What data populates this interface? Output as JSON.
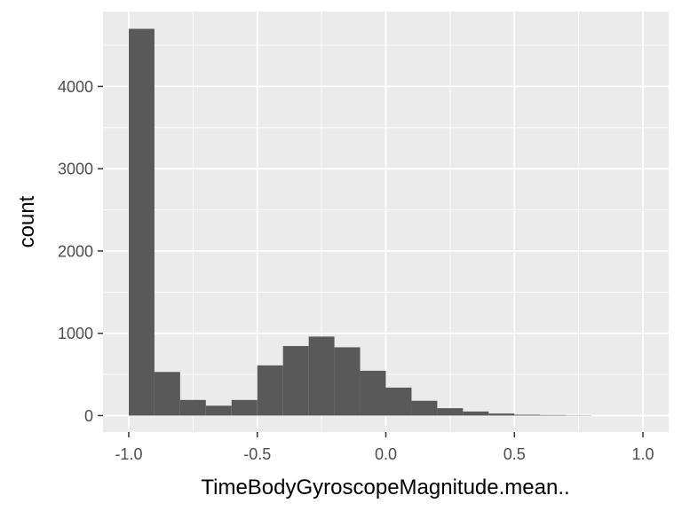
{
  "chart_data": {
    "type": "bar",
    "title": "",
    "xlabel": "TimeBodyGyroscopeMagnitude.mean..",
    "ylabel": "count",
    "xlim": [
      -1.1,
      1.1
    ],
    "ylim": [
      -200,
      4910
    ],
    "x_ticks": [
      -1.0,
      -0.5,
      0.0,
      0.5,
      1.0
    ],
    "x_tick_labels": [
      "-1.0",
      "-0.5",
      "0.0",
      "0.5",
      "1.0"
    ],
    "y_ticks": [
      0,
      1000,
      2000,
      3000,
      4000
    ],
    "y_tick_labels": [
      "0",
      "1000",
      "2000",
      "3000",
      "4000"
    ],
    "grid": true,
    "bin_width": 0.1,
    "bins": [
      {
        "x0": -1.0,
        "x1": -0.9,
        "count": 4700
      },
      {
        "x0": -0.9,
        "x1": -0.8,
        "count": 530
      },
      {
        "x0": -0.8,
        "x1": -0.7,
        "count": 190
      },
      {
        "x0": -0.7,
        "x1": -0.6,
        "count": 120
      },
      {
        "x0": -0.6,
        "x1": -0.5,
        "count": 190
      },
      {
        "x0": -0.5,
        "x1": -0.4,
        "count": 610
      },
      {
        "x0": -0.4,
        "x1": -0.3,
        "count": 845
      },
      {
        "x0": -0.3,
        "x1": -0.2,
        "count": 960
      },
      {
        "x0": -0.2,
        "x1": -0.1,
        "count": 830
      },
      {
        "x0": -0.1,
        "x1": 0.0,
        "count": 545
      },
      {
        "x0": 0.0,
        "x1": 0.1,
        "count": 340
      },
      {
        "x0": 0.1,
        "x1": 0.2,
        "count": 180
      },
      {
        "x0": 0.2,
        "x1": 0.3,
        "count": 90
      },
      {
        "x0": 0.3,
        "x1": 0.4,
        "count": 50
      },
      {
        "x0": 0.4,
        "x1": 0.5,
        "count": 25
      },
      {
        "x0": 0.5,
        "x1": 0.6,
        "count": 10
      },
      {
        "x0": 0.6,
        "x1": 0.7,
        "count": 6
      },
      {
        "x0": 0.7,
        "x1": 0.8,
        "count": 3
      }
    ],
    "colors": {
      "bar_fill": "#595959",
      "panel_background": "#ebebeb",
      "grid_line": "#ffffff",
      "tick_text": "#4d4d4d",
      "tick_mark": "#333333"
    }
  }
}
